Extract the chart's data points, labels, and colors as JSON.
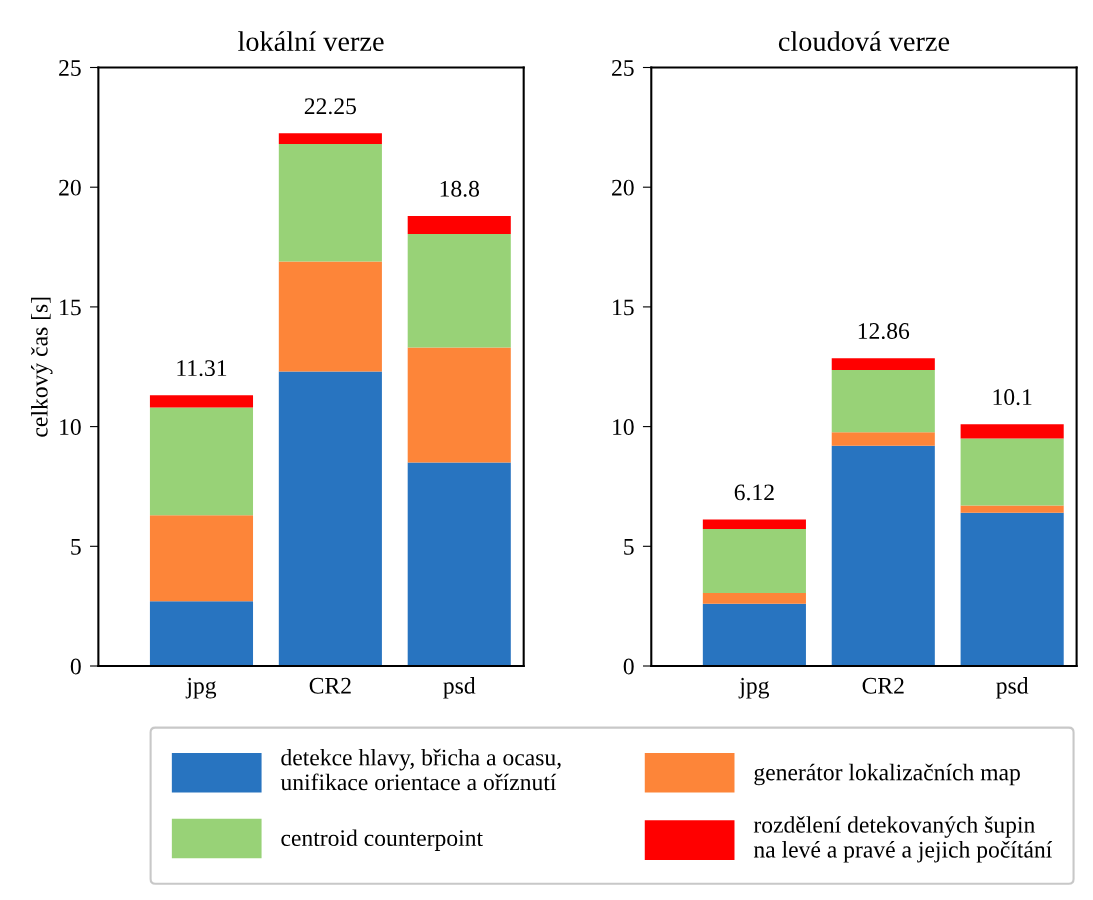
{
  "chart_data": [
    {
      "type": "bar",
      "title": "lokální verze",
      "ylabel": "celkový čas [s]",
      "categories": [
        "jpg",
        "CR2",
        "psd"
      ],
      "stacked": true,
      "ylim": [
        0,
        25
      ],
      "yticks": [
        0,
        5,
        10,
        15,
        20,
        25
      ],
      "grid": false,
      "legend": "bottom",
      "totals": [
        "11.31",
        "22.25",
        "18.8"
      ],
      "series": [
        {
          "name": "detekce hlavy, břicha a ocasu,\nunifikace orientace a oříznutí",
          "color": "#2874c0",
          "values": [
            2.7,
            12.3,
            8.5
          ]
        },
        {
          "name": "generátor lokalizačních map",
          "color": "#fd8539",
          "values": [
            3.6,
            4.6,
            4.8
          ]
        },
        {
          "name": "centroid counterpoint",
          "color": "#98d277",
          "values": [
            4.5,
            4.9,
            4.75
          ]
        },
        {
          "name": "rozdělení detekovaných šupin\nna levé a pravé a jejich počítání",
          "color": "#ff0000",
          "values": [
            0.51,
            0.45,
            0.75
          ]
        }
      ]
    },
    {
      "type": "bar",
      "title": "cloudová verze",
      "categories": [
        "jpg",
        "CR2",
        "psd"
      ],
      "stacked": true,
      "ylim": [
        0,
        25
      ],
      "yticks": [
        0,
        5,
        10,
        15,
        20,
        25
      ],
      "grid": false,
      "totals": [
        "6.12",
        "12.86",
        "10.1"
      ],
      "series": [
        {
          "color": "#2874c0",
          "values": [
            2.6,
            9.2,
            6.4
          ]
        },
        {
          "color": "#fd8539",
          "values": [
            0.45,
            0.56,
            0.3
          ]
        },
        {
          "color": "#98d277",
          "values": [
            2.67,
            2.6,
            2.8
          ]
        },
        {
          "color": "#ff0000",
          "values": [
            0.4,
            0.5,
            0.6
          ]
        }
      ]
    }
  ]
}
